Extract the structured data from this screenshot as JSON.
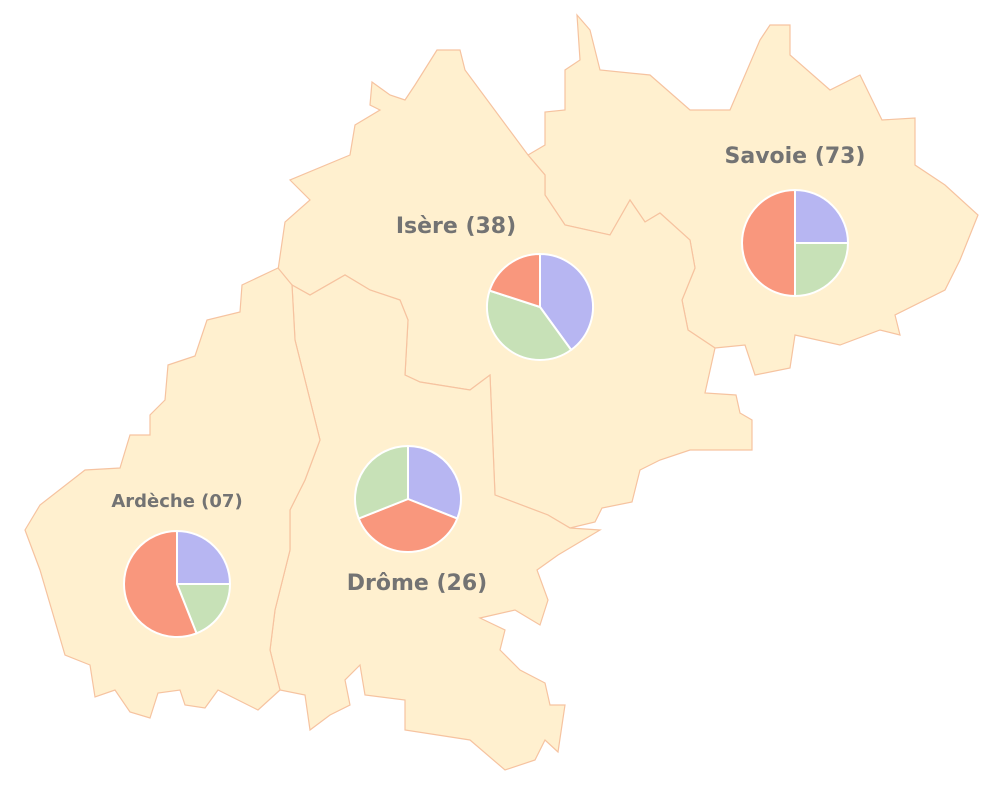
{
  "regions": [
    {
      "label": "Savoie (73)",
      "pie": {
        "values": [
          25,
          25,
          50
        ],
        "colors": [
          "#b7b6f2",
          "#c7e1b7",
          "#f9977d"
        ]
      }
    },
    {
      "label": "Isère (38)",
      "pie": {
        "values": [
          40,
          40,
          20
        ],
        "colors": [
          "#b7b6f2",
          "#c7e1b7",
          "#f9977d"
        ]
      }
    },
    {
      "label": "Drôme (26)",
      "pie": {
        "values": [
          31,
          38,
          31
        ],
        "colors": [
          "#b7b6f2",
          "#f9977d",
          "#c7e1b7"
        ]
      }
    },
    {
      "label": "Ardèche (07)",
      "pie": {
        "values": [
          25,
          19,
          56
        ],
        "colors": [
          "#b7b6f2",
          "#c7e1b7",
          "#f9977d"
        ]
      }
    }
  ]
}
